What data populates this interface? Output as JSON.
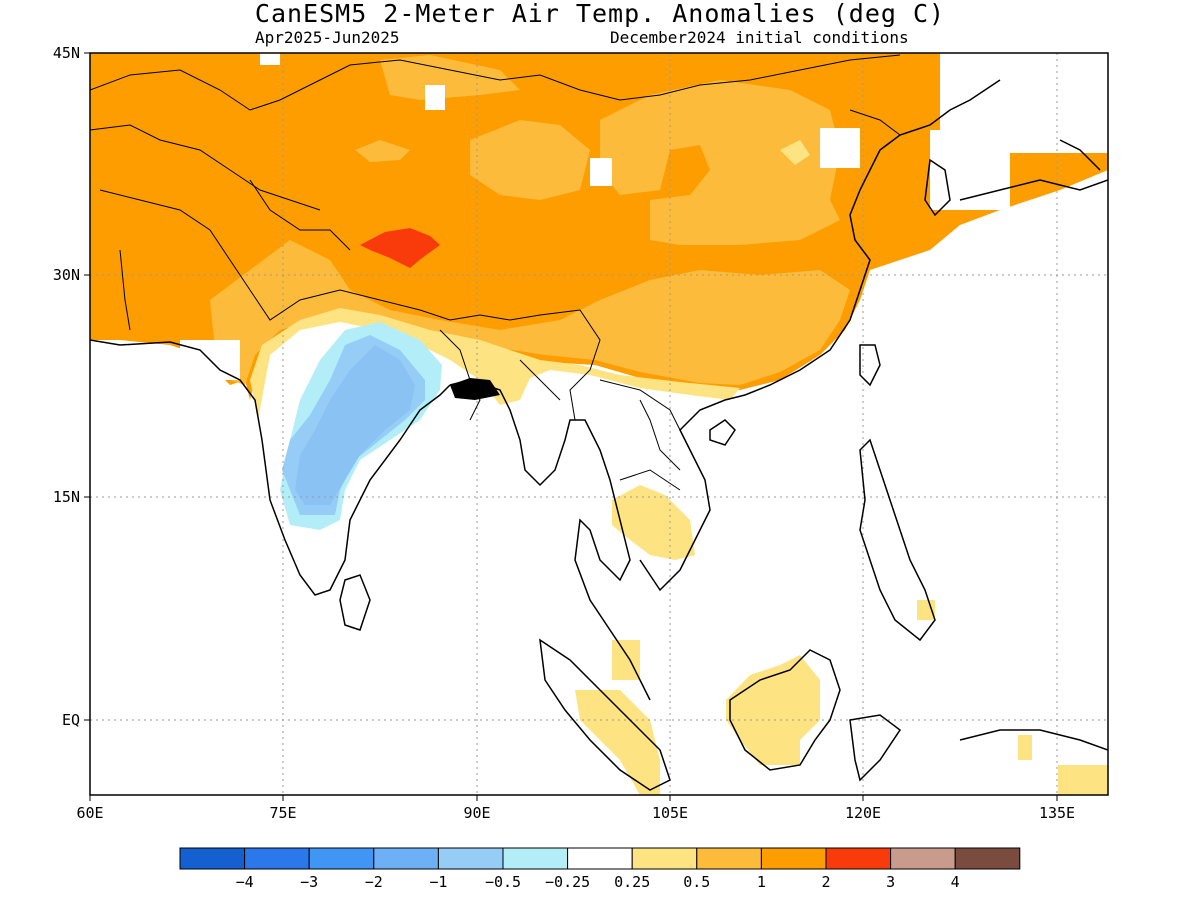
{
  "title": "CanESM5 2-Meter Air Temp. Anomalies (deg C)",
  "subtitle_left": "Apr2025-Jun2025",
  "subtitle_right": "December2024 initial conditions",
  "lat_labels": [
    "45N",
    "30N",
    "15N",
    "EQ"
  ],
  "lon_labels": [
    "60E",
    "75E",
    "90E",
    "105E",
    "120E",
    "135E"
  ],
  "colorbar": {
    "colors": [
      "#1560d0",
      "#2a78ea",
      "#3f96f5",
      "#6db0f5",
      "#95cdf7",
      "#b3eef8",
      "#ffffff",
      "#fde382",
      "#fdbb3c",
      "#fd9d00",
      "#f93a0a",
      "#c89b8c",
      "#7a4c40"
    ],
    "labels": [
      "-4",
      "-3",
      "-2",
      "-1",
      "-0.5",
      "-0.25",
      "0.25",
      "0.5",
      "1",
      "2",
      "3",
      "4"
    ]
  },
  "map_data": {
    "region": {
      "lon_min": 60,
      "lon_max": 139,
      "lat_min": -6,
      "lat_max": 45
    },
    "levels": [
      -4,
      -3,
      -2,
      -1,
      -0.5,
      -0.25,
      0.25,
      0.5,
      1,
      2,
      3,
      4
    ]
  }
}
